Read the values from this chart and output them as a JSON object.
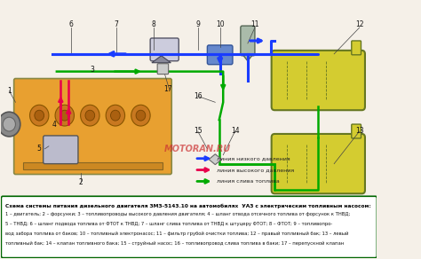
{
  "title": "Схема системы питания дизельного двигателя ЗМЗ-5143.10 на автомобилях  УАЗ с электрическим топливным насосом:",
  "caption_lines": [
    "1 – двигатель; 2 – форсунки; 3 – топливопроводы высокого давления двигателя; 4 – шланг отвода отсечного топлива от форсунок к ТНВД;",
    "5 – ТНВД; 6 – шланг подвода топлива от ФТОТ к ТНВД; 7 – шланг слива топлива от ТНВД к штуцеру ФТОТ; 8 – ФТОТ; 9 – топливопро-",
    "вод забора топлива от баков; 10 – топливный электронасос; 11 – фильтр грубой очистки топлива; 12 – правый топливный бак; 13 – левый",
    "топливный бак; 14 – клапан топливного бака; 15 – струйный насос; 16 – топливопровод слива топлива в баки; 17 – перепускной клапан"
  ],
  "legend_items": [
    {
      "label": "линия низкого давления",
      "color": "#1a3cff",
      "arrow": true
    },
    {
      "label": "линия высокого давления",
      "color": "#e8004c",
      "arrow": true
    },
    {
      "label": "линия слива топлива",
      "color": "#00aa00",
      "arrow": true
    }
  ],
  "bg_color": "#f5f0e8",
  "diagram_bg": "#ffffff",
  "engine_color": "#e8a030",
  "engine_outline": "#888855",
  "tank_color": "#d4cc30",
  "tank_outline": "#667722",
  "filter_color": "#dddddd",
  "blue": "#1a3cff",
  "red": "#e8004c",
  "green": "#00aa00",
  "dark_gray": "#555555",
  "caption_box_color": "#006600",
  "watermark": "MOTORAN.RU",
  "watermark_color": "#cc3333",
  "numbers": [
    "1",
    "2",
    "3",
    "4",
    "5",
    "6",
    "7",
    "8",
    "9",
    "10",
    "11",
    "12",
    "13",
    "14",
    "15",
    "16",
    "17"
  ],
  "figsize": [
    4.74,
    2.92
  ],
  "dpi": 100
}
